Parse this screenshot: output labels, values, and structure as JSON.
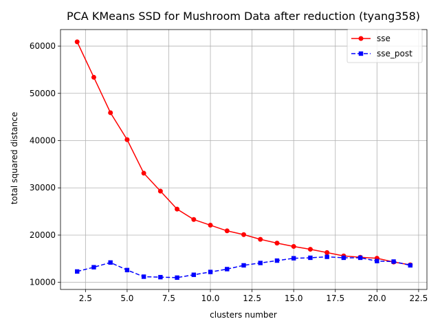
{
  "chart_data": {
    "type": "line",
    "title": "PCA KMeans SSD for Mushroom Data after reduction (tyang358)",
    "xlabel": "clusters number",
    "ylabel": "total squared distance",
    "xlim": [
      1.0,
      23.0
    ],
    "ylim": [
      8500,
      63500
    ],
    "x_ticks": [
      2.5,
      5.0,
      7.5,
      10.0,
      12.5,
      15.0,
      17.5,
      20.0,
      22.5
    ],
    "x_tick_labels": [
      "2.5",
      "5.0",
      "7.5",
      "10.0",
      "12.5",
      "15.0",
      "17.5",
      "20.0",
      "22.5"
    ],
    "y_ticks": [
      10000,
      20000,
      30000,
      40000,
      50000,
      60000
    ],
    "y_tick_labels": [
      "10000",
      "20000",
      "30000",
      "40000",
      "50000",
      "60000"
    ],
    "grid": true,
    "legend_position": "top-right",
    "x": [
      2,
      3,
      4,
      5,
      6,
      7,
      8,
      9,
      10,
      11,
      12,
      13,
      14,
      15,
      16,
      17,
      18,
      19,
      20,
      21,
      22
    ],
    "series": [
      {
        "name": "sse",
        "color": "#ff0000",
        "line_style": "solid",
        "marker": "circle",
        "values": [
          60900,
          53400,
          45900,
          40200,
          33100,
          29300,
          25500,
          23300,
          22100,
          20900,
          20100,
          19100,
          18300,
          17600,
          17000,
          16300,
          15600,
          15300,
          15100,
          14300,
          13700
        ]
      },
      {
        "name": "sse_post",
        "color": "#0000ff",
        "line_style": "dashed",
        "marker": "square",
        "values": [
          12300,
          13200,
          14200,
          12600,
          11200,
          11100,
          11000,
          11600,
          12200,
          12800,
          13600,
          14100,
          14600,
          15100,
          15200,
          15400,
          15200,
          15200,
          14500,
          14400,
          13600
        ]
      }
    ]
  }
}
